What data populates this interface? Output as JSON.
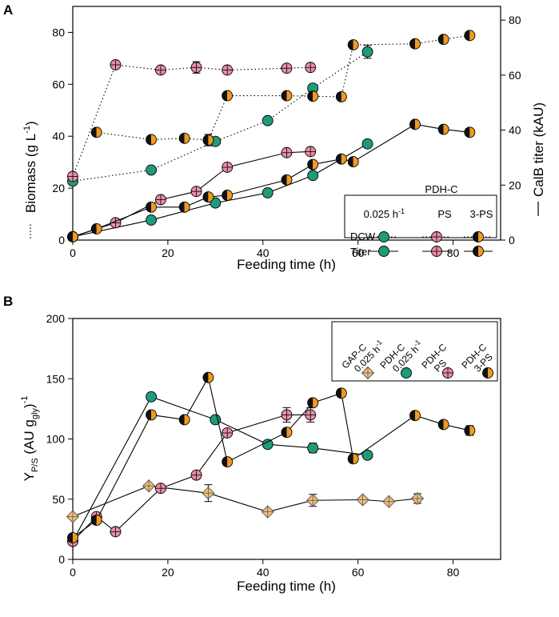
{
  "colors": {
    "teal": "#1f9a7a",
    "pink": "#e88ea3",
    "orange": "#f39a1e",
    "half_dark": "#111111",
    "tan": "#f4bf7a"
  },
  "chart_data": [
    {
      "panel_label": "A",
      "type": "line",
      "xlabel": "Feeding time (h)",
      "ylabel_left_prefix": "Biomass (g L",
      "ylabel_left_sup": "-1",
      "ylabel_left_suffix": ")",
      "ylabel_right": "CalB titer (kAU)",
      "xlim": [
        0,
        90
      ],
      "ylim_left": [
        0,
        90
      ],
      "ylim_right": [
        0,
        85
      ],
      "xticks": [
        0,
        20,
        40,
        60,
        80
      ],
      "yticks_left": [
        0,
        20,
        40,
        60,
        80
      ],
      "yticks_right": [
        0,
        20,
        40,
        60,
        80
      ],
      "legend": {
        "header": "PDH-C",
        "col1_prefix": "0.025 h",
        "col1_sup": "-1",
        "col2": "PS",
        "col3": "3-PS",
        "row1": "DCW",
        "row2": "Titer"
      },
      "series": [
        {
          "name": "DCW 0.025 h-1",
          "axis": "left",
          "marker": "teal",
          "style": "dotted",
          "x": [
            0,
            16.5,
            30,
            41,
            50.5,
            62
          ],
          "y": [
            22.7,
            27,
            38,
            46,
            58.5,
            72.5
          ],
          "err": [
            0,
            0,
            0,
            0,
            0,
            2.5
          ]
        },
        {
          "name": "DCW PS",
          "axis": "left",
          "marker": "pink",
          "style": "dotted",
          "x": [
            0,
            9,
            18.5,
            26,
            32.5,
            45,
            50
          ],
          "y": [
            24.5,
            67.5,
            65.5,
            66.5,
            65.5,
            66.2,
            66.5
          ],
          "err": [
            0,
            0,
            0,
            2.2,
            0,
            0,
            0
          ]
        },
        {
          "name": "DCW 3-PS",
          "axis": "left",
          "marker": "half",
          "style": "dotted",
          "x": [
            5,
            16.5,
            23.5,
            28.5,
            32.5,
            45,
            50.5,
            56.5,
            59,
            72,
            78,
            83.5
          ],
          "y": [
            41.5,
            38.7,
            39.2,
            38.5,
            55.6,
            55.6,
            55.4,
            55.2,
            75.2,
            75.6,
            77.3,
            78.8
          ],
          "err": [
            0,
            0,
            0,
            2.2,
            0,
            0,
            0,
            0,
            0,
            0,
            0,
            0
          ]
        },
        {
          "name": "Titer 0.025 h-1",
          "axis": "right",
          "marker": "teal",
          "style": "solid",
          "x": [
            0,
            16.5,
            30,
            41,
            50.5,
            62
          ],
          "y": [
            1.2,
            7.3,
            13.5,
            17.2,
            23.5,
            35
          ],
          "err": [
            0,
            0,
            0,
            0,
            0,
            0
          ]
        },
        {
          "name": "Titer PS",
          "axis": "right",
          "marker": "pink",
          "style": "solid",
          "x": [
            0,
            9,
            18.5,
            26,
            32.5,
            45,
            50
          ],
          "y": [
            1.2,
            6.3,
            14.7,
            17.7,
            26.5,
            31.8,
            32.2
          ],
          "err": [
            0,
            0,
            0,
            0,
            0,
            0,
            0
          ]
        },
        {
          "name": "Titer 3-PS",
          "axis": "right",
          "marker": "half",
          "style": "solid",
          "x": [
            0,
            5,
            16.5,
            23.5,
            28.5,
            32.5,
            45,
            50.5,
            56.5,
            59,
            72,
            78,
            83.5
          ],
          "y": [
            1.2,
            4.1,
            12,
            12,
            15.7,
            16.3,
            21.9,
            27.5,
            29.5,
            28.5,
            42.1,
            40.3,
            39.2
          ],
          "err": [
            0,
            0,
            0,
            0,
            0,
            0,
            0,
            0,
            0,
            0,
            0,
            0,
            1.2
          ]
        }
      ]
    },
    {
      "panel_label": "B",
      "type": "line",
      "xlabel": "Feeding time (h)",
      "ylabel_main": "Y",
      "ylabel_sub": "P/S",
      "ylabel_rest": " (AU g",
      "ylabel_sub2": "gly",
      "ylabel_close": ")",
      "ylabel_sup": "-1",
      "xlim": [
        0,
        90
      ],
      "ylim": [
        0,
        200
      ],
      "xticks": [
        0,
        20,
        40,
        60,
        80
      ],
      "yticks": [
        0,
        50,
        100,
        150,
        200
      ],
      "legend": [
        {
          "line1": "GAP-C",
          "line2": "0.025 h",
          "sup": "-1",
          "marker": "diamond"
        },
        {
          "line1": "PDH-C",
          "line2": "0.025 h",
          "sup": "-1",
          "marker": "teal"
        },
        {
          "line1": "PDH-C",
          "line2": "PS",
          "sup": "",
          "marker": "pink"
        },
        {
          "line1": "PDH-C",
          "line2": "3-PS",
          "sup": "",
          "marker": "half"
        }
      ],
      "series": [
        {
          "name": "GAP-C 0.025 h-1",
          "marker": "diamond",
          "x": [
            0,
            16,
            28.5,
            41,
            50.5,
            61,
            66.5,
            72.5
          ],
          "y": [
            35.5,
            61,
            55,
            39.5,
            49,
            49.5,
            48,
            50.5
          ],
          "err": [
            0,
            0,
            7,
            0,
            5,
            0,
            0,
            4
          ]
        },
        {
          "name": "PDH-C 0.025 h-1",
          "marker": "teal",
          "x": [
            0,
            16.5,
            30,
            41,
            50.5,
            62
          ],
          "y": [
            15,
            135,
            116,
            95.5,
            92.5,
            86.5
          ],
          "err": [
            0,
            0,
            0,
            0,
            4,
            0
          ]
        },
        {
          "name": "PDH-C PS",
          "marker": "pink",
          "x": [
            0,
            5,
            9,
            18.5,
            26,
            32.5,
            45,
            50
          ],
          "y": [
            15,
            35.5,
            23,
            59,
            70,
            105,
            120,
            120
          ],
          "err": [
            0,
            0,
            0,
            0,
            0,
            0,
            6,
            6
          ]
        },
        {
          "name": "PDH-C 3-PS",
          "marker": "half",
          "x": [
            0,
            5,
            16.5,
            23.5,
            28.5,
            32.5,
            45,
            50.5,
            56.5,
            59,
            72,
            78,
            83.5
          ],
          "y": [
            18,
            32.5,
            120,
            116,
            151,
            81,
            105.5,
            130,
            138,
            83.5,
            119.5,
            112,
            107
          ],
          "err": [
            0,
            0,
            0,
            0,
            0,
            0,
            0,
            3,
            3,
            3,
            0,
            0,
            4
          ]
        }
      ]
    }
  ]
}
